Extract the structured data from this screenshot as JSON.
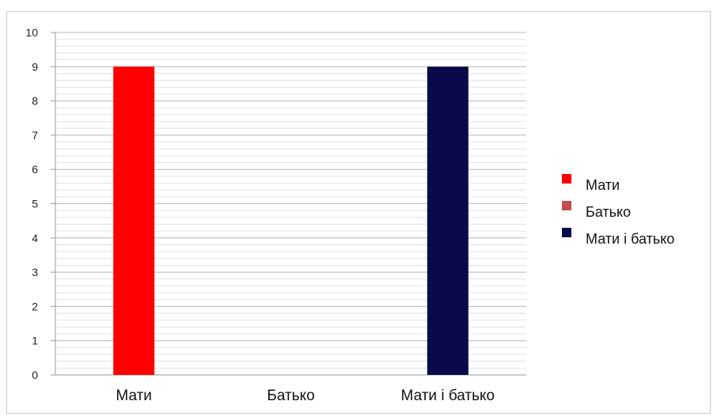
{
  "chart_data": {
    "type": "bar",
    "title": "",
    "xlabel": "",
    "ylabel": "",
    "categories": [
      "Мати",
      "Батько",
      "Мати і батько"
    ],
    "series": [
      {
        "name": "Мати",
        "values": [
          9,
          null,
          null
        ],
        "color": "#ff0000"
      },
      {
        "name": "Батько",
        "values": [
          null,
          0,
          null
        ],
        "color": "#c0504d"
      },
      {
        "name": "Мати і батько",
        "values": [
          null,
          null,
          9
        ],
        "color": "#0a0a4a"
      }
    ],
    "ylim": [
      0,
      10
    ],
    "yticks": [
      0,
      1,
      2,
      3,
      4,
      5,
      6,
      7,
      8,
      9,
      10
    ],
    "grid": true,
    "legend_position": "right"
  }
}
